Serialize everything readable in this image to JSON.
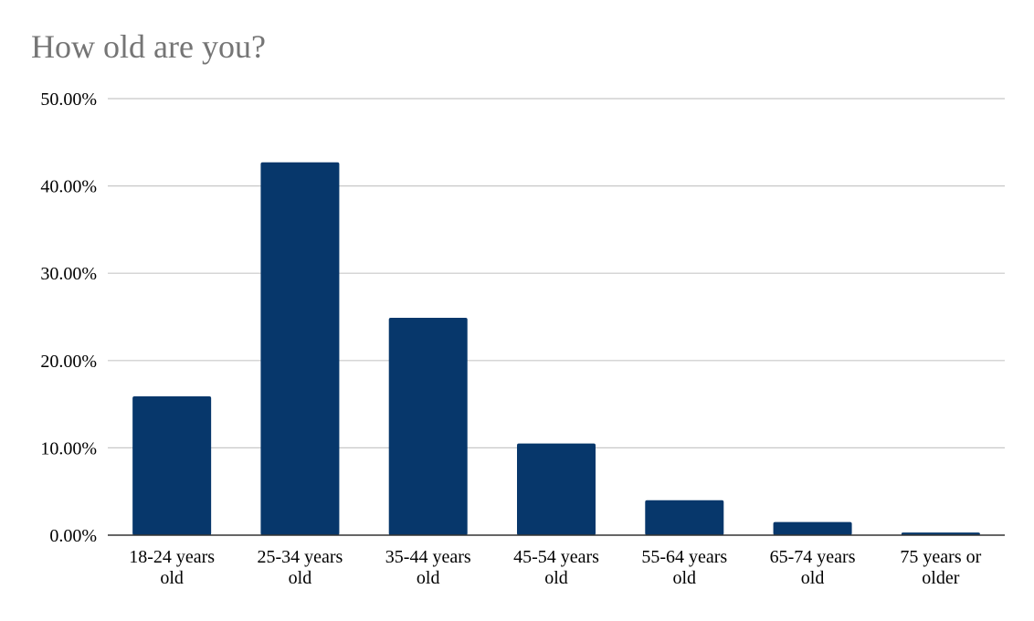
{
  "chart_data": {
    "type": "bar",
    "title": "How old are you?",
    "xlabel": "",
    "ylabel": "",
    "categories": [
      [
        "18-24 years",
        "old"
      ],
      [
        "25-34 years",
        "old"
      ],
      [
        "35-44 years",
        "old"
      ],
      [
        "45-54 years",
        "old"
      ],
      [
        "55-64 years",
        "old"
      ],
      [
        "65-74 years",
        "old"
      ],
      [
        "75 years or",
        "older"
      ]
    ],
    "values": [
      15.9,
      42.7,
      24.9,
      10.5,
      4.0,
      1.5,
      0.3
    ],
    "ylim": [
      0,
      50
    ],
    "yticks": [
      0,
      10,
      20,
      30,
      40,
      50
    ],
    "ytick_labels": [
      "0.00%",
      "10.00%",
      "20.00%",
      "30.00%",
      "40.00%",
      "50.00%"
    ],
    "grid": true,
    "legend": "none",
    "colors": {
      "bar": "#07376b",
      "grid": "#c8c8c8",
      "axis": "#333333",
      "title": "#757575"
    }
  }
}
